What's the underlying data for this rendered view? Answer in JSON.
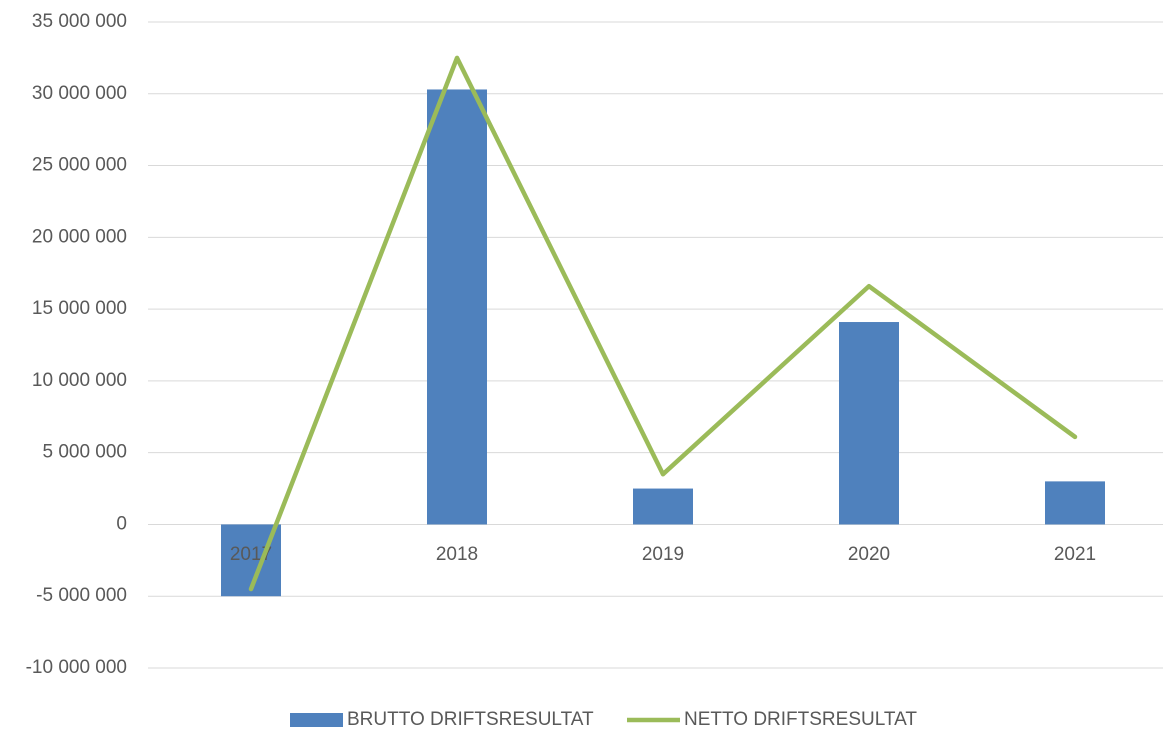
{
  "chart_data": {
    "type": "bar+line",
    "categories": [
      "2017",
      "2018",
      "2019",
      "2020",
      "2021"
    ],
    "series": [
      {
        "name": "BRUTTO DRIFTSRESULTAT",
        "color": "#4f81bd",
        "type": "bar",
        "values": [
          -5000000,
          30300000,
          2500000,
          14100000,
          3000000
        ]
      },
      {
        "name": "NETTO DRIFTSRESULTAT",
        "color": "#9bbb59",
        "type": "line",
        "values": [
          -4500000,
          32500000,
          3500000,
          16600000,
          6100000
        ]
      }
    ],
    "ylim": [
      -10000000,
      35000000
    ],
    "yticks": [
      {
        "value": -10000000,
        "label": "-10 000 000"
      },
      {
        "value": -5000000,
        "label": "-5 000 000"
      },
      0,
      {
        "value": 5000000,
        "label": "5 000 000"
      },
      {
        "value": 10000000,
        "label": "10 000 000"
      },
      {
        "value": 15000000,
        "label": "15 000 000"
      },
      {
        "value": 20000000,
        "label": "20 000 000"
      },
      {
        "value": 25000000,
        "label": "25 000 000"
      },
      {
        "value": 30000000,
        "label": "30 000 000"
      },
      {
        "value": 35000000,
        "label": "35 000 000"
      }
    ],
    "grid": true,
    "legend": "bottom"
  }
}
